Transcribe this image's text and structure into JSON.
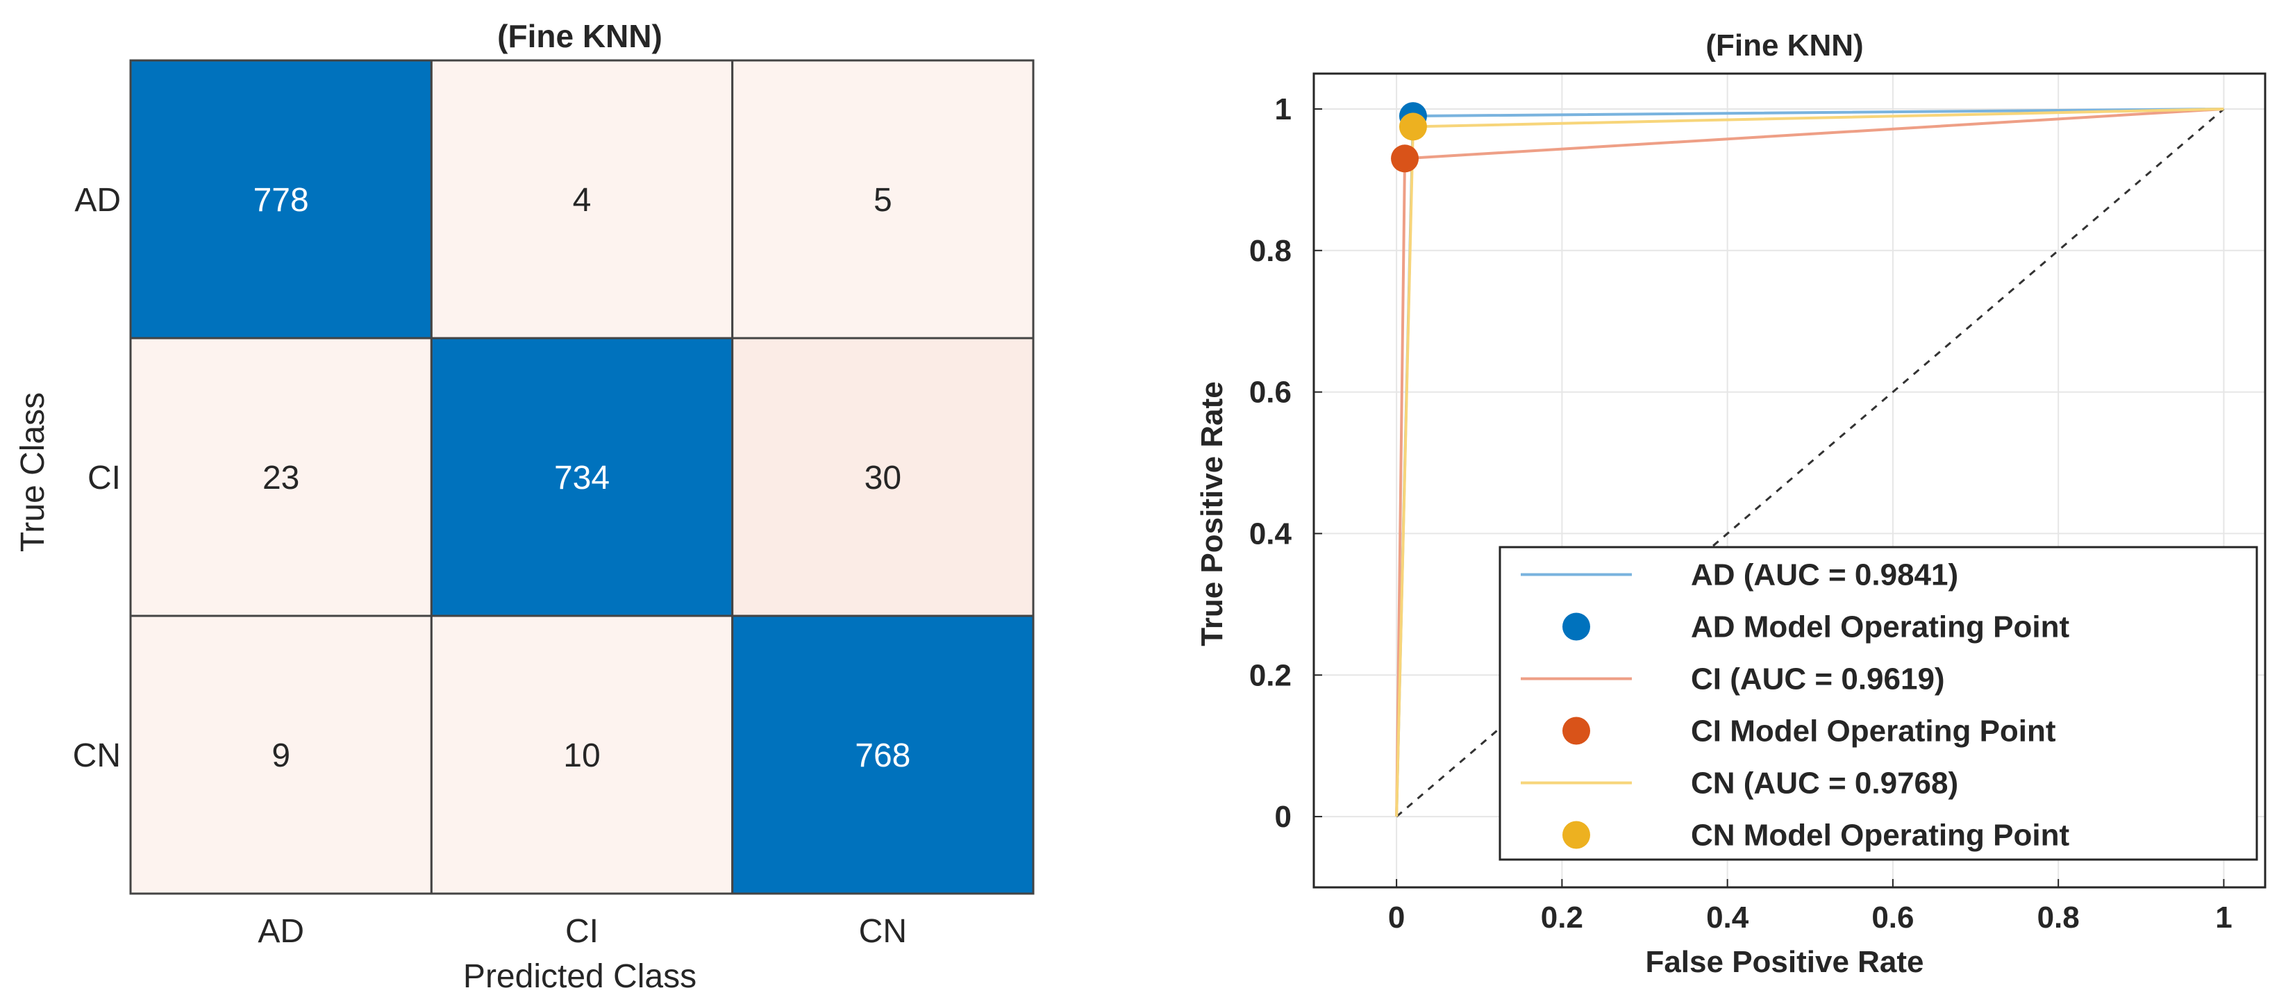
{
  "chart_data": [
    {
      "type": "heatmap",
      "title": "(Fine KNN)",
      "xlabel": "Predicted Class",
      "ylabel": "True Class",
      "row_labels": [
        "AD",
        "CI",
        "CN"
      ],
      "col_labels": [
        "AD",
        "CI",
        "CN"
      ],
      "matrix": [
        [
          778,
          4,
          5
        ],
        [
          23,
          734,
          30
        ],
        [
          9,
          10,
          768
        ]
      ],
      "colors": {
        "high": "#0072bd",
        "low": "#fdf3ef",
        "mid": "#fbece6",
        "high_text": "#ffffff",
        "low_text": "#262626"
      }
    },
    {
      "type": "line",
      "title": "(Fine KNN)",
      "xlabel": "False Positive Rate",
      "ylabel": "True Positive Rate",
      "xlim": [
        -0.1,
        1.05
      ],
      "ylim": [
        -0.1,
        1.05
      ],
      "xticks": [
        "0",
        "0.2",
        "0.4",
        "0.6",
        "0.8",
        "1"
      ],
      "yticks": [
        "0",
        "0.2",
        "0.4",
        "0.6",
        "0.8",
        "1"
      ],
      "grid": true,
      "legend_position": "bottom-right",
      "series": [
        {
          "name": "AD (AUC = 0.9841)",
          "color": "#79b3de",
          "x": [
            0,
            0.02,
            1
          ],
          "y": [
            0,
            0.99,
            1
          ]
        },
        {
          "name": "CI (AUC = 0.9619)",
          "color": "#ee9f86",
          "x": [
            0,
            0.01,
            1
          ],
          "y": [
            0,
            0.93,
            1
          ]
        },
        {
          "name": "CN (AUC = 0.9768)",
          "color": "#f7d57a",
          "x": [
            0,
            0.02,
            1
          ],
          "y": [
            0,
            0.975,
            1
          ]
        }
      ],
      "operating_points": [
        {
          "name": "AD Model Operating Point",
          "color": "#0072bd",
          "x": 0.02,
          "y": 0.99
        },
        {
          "name": "CI Model Operating Point",
          "color": "#d95319",
          "x": 0.01,
          "y": 0.93
        },
        {
          "name": "CN Model Operating Point",
          "color": "#edb120",
          "x": 0.02,
          "y": 0.975
        }
      ],
      "legend": [
        "AD (AUC = 0.9841)",
        "AD Model Operating Point",
        "CI (AUC = 0.9619)",
        "CI Model Operating Point",
        "CN (AUC = 0.9768)",
        "CN Model Operating Point"
      ]
    }
  ]
}
